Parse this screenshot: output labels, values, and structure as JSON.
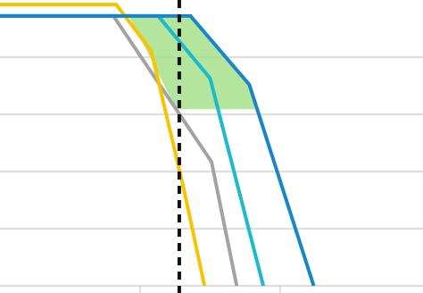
{
  "chart_data": {
    "type": "line",
    "xlim": [
      0,
      3.02
    ],
    "ylim": [
      0,
      5
    ],
    "xticks": [
      1,
      2
    ],
    "yticks": [
      1,
      2,
      3,
      4
    ],
    "grid": true,
    "shade": {
      "color": "#a6e08c",
      "x": [
        0.92,
        1.36,
        1.78,
        1.82,
        1.26
      ],
      "values": [
        4.72,
        4.72,
        3.52,
        3.09,
        3.09
      ]
    },
    "vline": {
      "x": 1.28,
      "color": "#111111"
    },
    "series": [
      {
        "color": "#a3a3a3",
        "x": [
          0,
          0.81,
          1.51,
          1.69
        ],
        "values": [
          4.72,
          4.72,
          2.17,
          0
        ]
      },
      {
        "color": "#f6c400",
        "x": [
          0,
          0.83,
          1.08,
          1.31,
          1.46
        ],
        "values": [
          4.92,
          4.92,
          4.11,
          1.72,
          0
        ]
      },
      {
        "color": "#1cbacb",
        "x": [
          0,
          1.13,
          1.5,
          1.88
        ],
        "values": [
          4.72,
          4.72,
          3.63,
          0
        ]
      },
      {
        "color": "#1a86c8",
        "x": [
          0,
          1.36,
          1.78,
          2.24
        ],
        "values": [
          4.72,
          4.72,
          3.52,
          0
        ]
      }
    ]
  }
}
